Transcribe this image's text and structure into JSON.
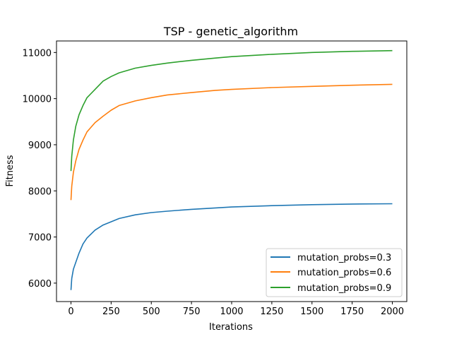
{
  "chart_data": {
    "type": "line",
    "title": "TSP - genetic_algorithm",
    "xlabel": "Iterations",
    "ylabel": "Fitness",
    "xlim": [
      -90,
      2090
    ],
    "ylim": [
      5600,
      11250
    ],
    "xticks": [
      0,
      250,
      500,
      750,
      1000,
      1250,
      1500,
      1750,
      2000
    ],
    "yticks": [
      6000,
      7000,
      8000,
      9000,
      10000,
      11000
    ],
    "grid": false,
    "legend_position": "lower-right",
    "series": [
      {
        "name": "mutation_probs=0.3",
        "color": "#1f77b4",
        "x": [
          0,
          5,
          15,
          30,
          50,
          75,
          100,
          150,
          200,
          250,
          300,
          400,
          500,
          600,
          750,
          900,
          1000,
          1250,
          1500,
          1750,
          2000
        ],
        "y": [
          5850,
          6100,
          6300,
          6450,
          6650,
          6850,
          6980,
          7150,
          7260,
          7330,
          7400,
          7480,
          7530,
          7560,
          7600,
          7630,
          7650,
          7680,
          7700,
          7715,
          7720
        ]
      },
      {
        "name": "mutation_probs=0.6",
        "color": "#ff7f0e",
        "x": [
          0,
          5,
          15,
          30,
          50,
          75,
          100,
          150,
          200,
          250,
          300,
          400,
          500,
          600,
          750,
          900,
          1000,
          1250,
          1500,
          1750,
          2000
        ],
        "y": [
          7800,
          8100,
          8400,
          8650,
          8900,
          9100,
          9280,
          9480,
          9620,
          9750,
          9850,
          9950,
          10020,
          10080,
          10130,
          10180,
          10200,
          10240,
          10265,
          10290,
          10310
        ]
      },
      {
        "name": "mutation_probs=0.9",
        "color": "#2ca02c",
        "x": [
          0,
          5,
          15,
          30,
          50,
          75,
          100,
          150,
          200,
          250,
          300,
          400,
          500,
          600,
          750,
          900,
          1000,
          1250,
          1500,
          1750,
          2000
        ],
        "y": [
          8430,
          8750,
          9100,
          9400,
          9650,
          9850,
          10020,
          10200,
          10380,
          10480,
          10560,
          10660,
          10720,
          10770,
          10830,
          10880,
          10910,
          10960,
          11000,
          11025,
          11040
        ]
      }
    ]
  }
}
